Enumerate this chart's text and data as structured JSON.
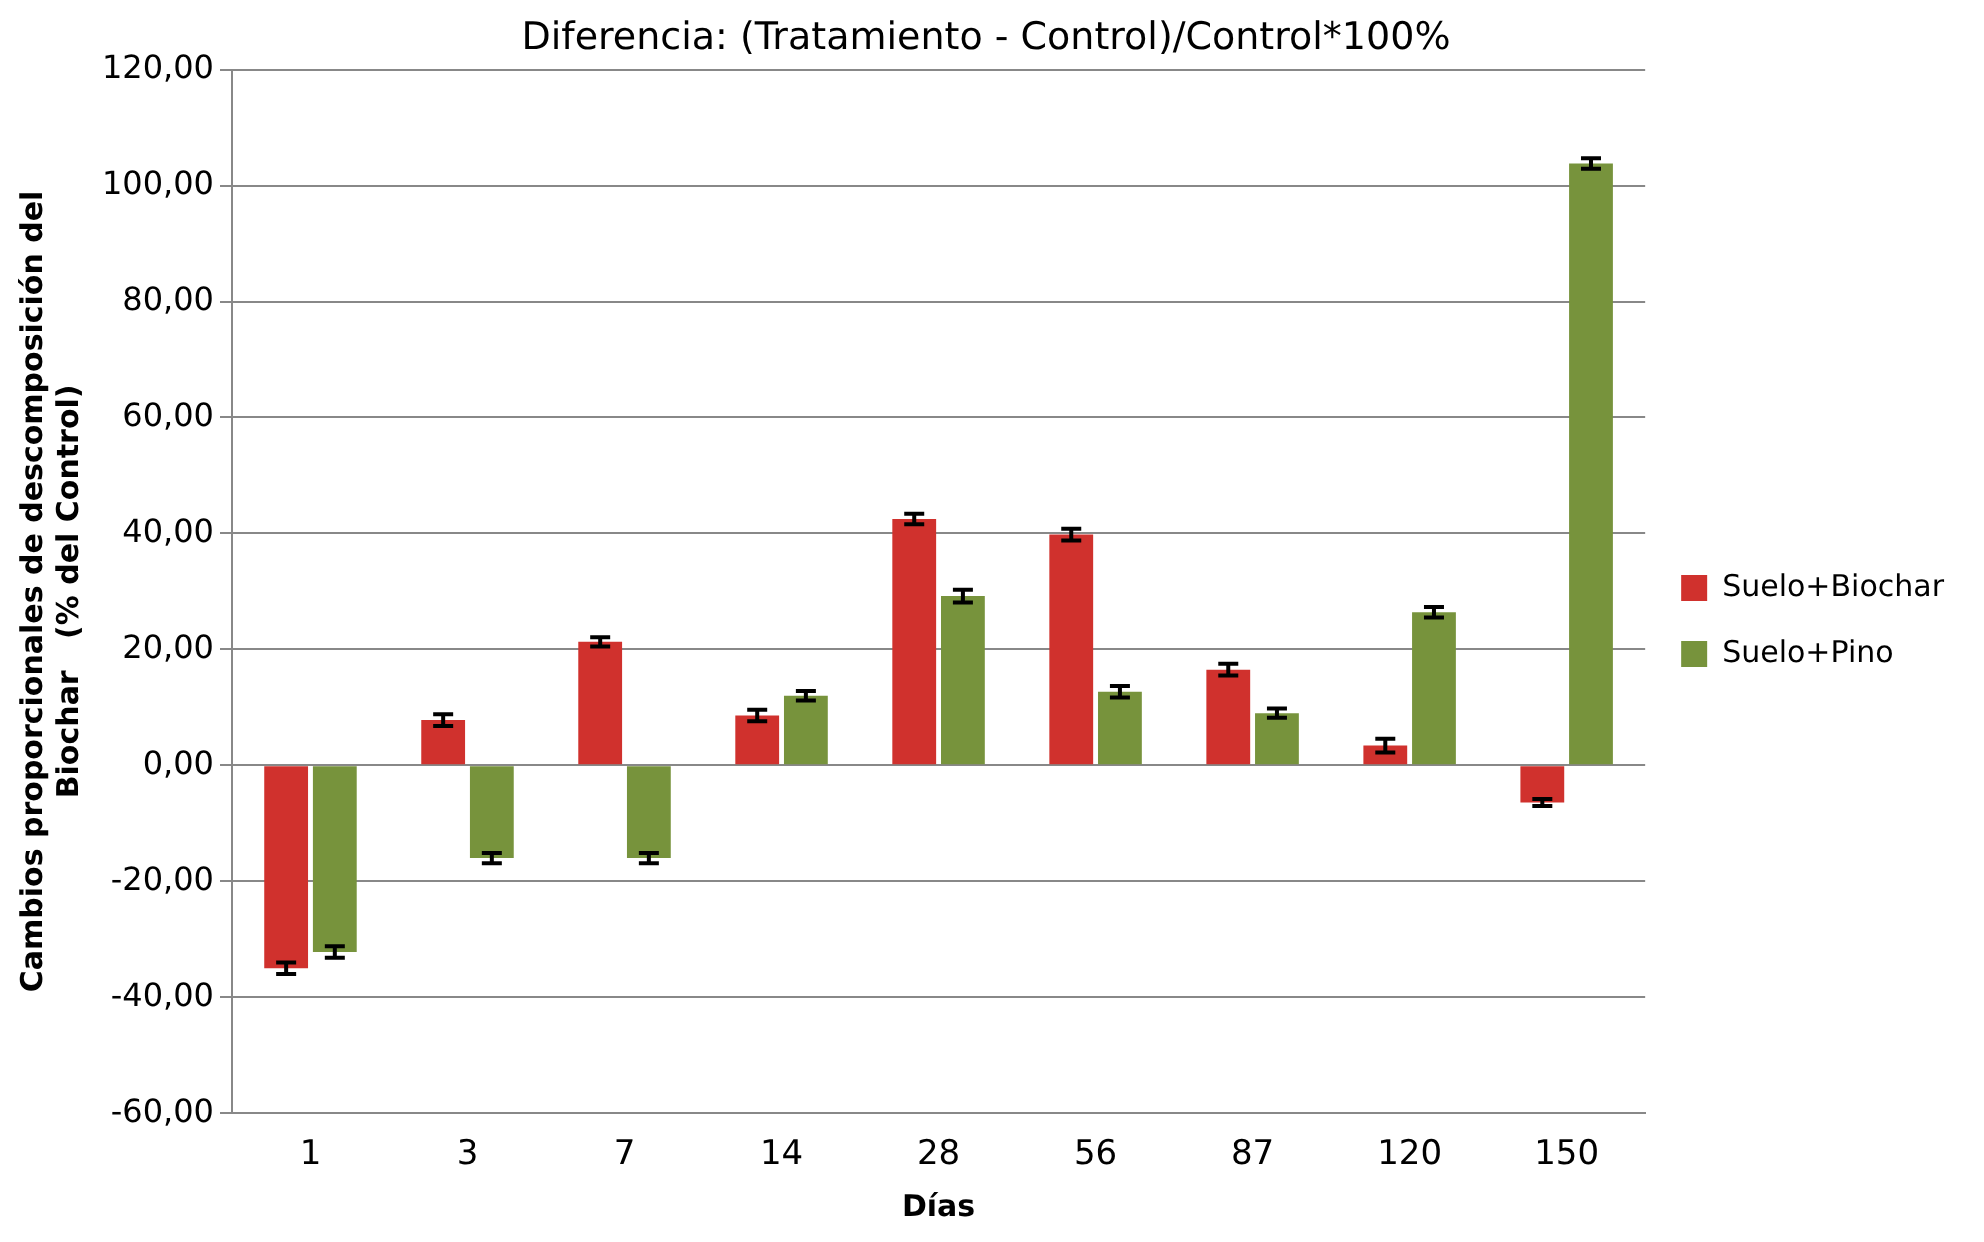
{
  "chart_data": {
    "type": "bar",
    "title": "Diferencia: (Tratamiento - Control)/Control*100%",
    "xlabel": "Días",
    "ylabel": "Cambios proporcionales de descomposición del Biochar   (% del Control)",
    "categories": [
      "1",
      "3",
      "7",
      "14",
      "28",
      "56",
      "87",
      "120",
      "150"
    ],
    "series": [
      {
        "name": "Suelo+Biochar",
        "color": "#d0312d",
        "values": [
          -35,
          7.8,
          21.3,
          8.6,
          42.5,
          39.8,
          16.5,
          3.4,
          -6.4
        ],
        "errors": [
          1,
          1,
          0.8,
          1,
          0.9,
          1,
          1,
          1.2,
          0.6
        ]
      },
      {
        "name": "Suelo+Pino",
        "color": "#77933c",
        "values": [
          -32.2,
          -16,
          -16,
          12,
          29.2,
          12.7,
          9,
          26.4,
          103.8
        ],
        "errors": [
          1,
          0.9,
          0.9,
          0.8,
          1.1,
          1,
          0.8,
          0.9,
          0.9
        ]
      }
    ],
    "ylim": [
      -60,
      120
    ],
    "yticks": [
      {
        "value": -60,
        "label": "-60,00"
      },
      {
        "value": -40,
        "label": "-40,00"
      },
      {
        "value": -20,
        "label": "-20,00"
      },
      {
        "value": 0,
        "label": "0,00"
      },
      {
        "value": 20,
        "label": "20,00"
      },
      {
        "value": 40,
        "label": "40,00"
      },
      {
        "value": 60,
        "label": "60,00"
      },
      {
        "value": 80,
        "label": "80,00"
      },
      {
        "value": 100,
        "label": "100,00"
      },
      {
        "value": 120,
        "label": "120,00"
      }
    ],
    "grid": "y",
    "legend": "right"
  }
}
